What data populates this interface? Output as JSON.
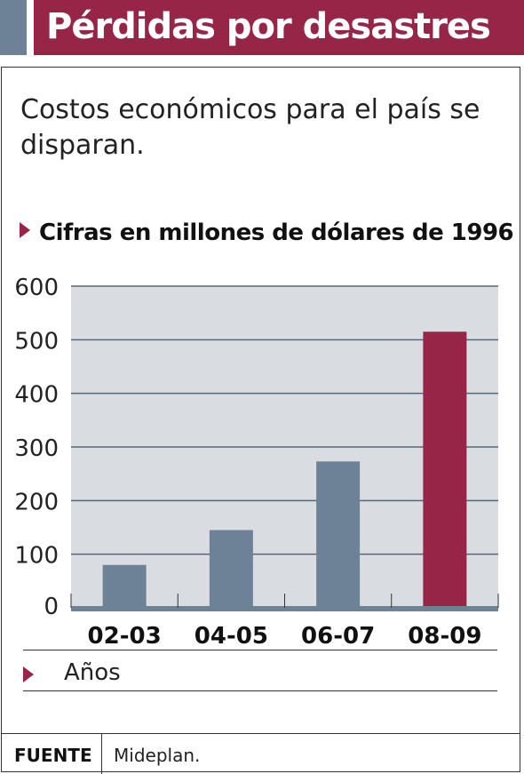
{
  "header": {
    "title": "Pérdidas por desastres"
  },
  "subtitle": "Costos económicos para el país se disparan.",
  "units_label": "Cifras en millones de dólares de 1996",
  "footer": {
    "source_label": "FUENTE",
    "source_value": "Mideplan."
  },
  "chart_data": {
    "type": "bar",
    "title": "Pérdidas por desastres",
    "subtitle": "Costos económicos para el país se disparan.",
    "ylabel": "Cifras en millones de dólares de 1996",
    "xlabel": "Años",
    "categories": [
      "02-03",
      "04-05",
      "06-07",
      "08-09"
    ],
    "values": [
      80,
      145,
      273,
      515
    ],
    "yticks": [
      0,
      100,
      200,
      300,
      400,
      500,
      600
    ],
    "ylim": [
      0,
      600
    ],
    "grid": true,
    "colors": {
      "bar": "#6d8296",
      "highlight_bar": "#962548",
      "plot_background": "#d9dde2",
      "gridline": "#56677a"
    },
    "highlight_index": 3
  }
}
